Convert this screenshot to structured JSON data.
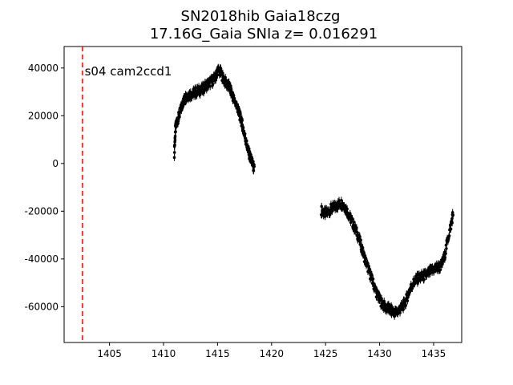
{
  "chart_data": {
    "type": "scatter",
    "title": "SN2018hib  Gaia18czg",
    "subtitle": "17.16G_Gaia SNIa z= 0.016291",
    "xlabel": "",
    "ylabel": "",
    "xlim": [
      1400.8,
      1437.6
    ],
    "ylim": [
      -75000,
      49000
    ],
    "xticks": [
      1405,
      1410,
      1415,
      1420,
      1425,
      1430,
      1435
    ],
    "yticks": [
      -60000,
      -40000,
      -20000,
      0,
      20000,
      40000
    ],
    "grid": false,
    "marker_color": "#000000",
    "errorbars": true,
    "vline": {
      "x": 1402.5,
      "color": "#ff0000",
      "style": "dashed"
    },
    "annotation": {
      "text": "s04 cam2ccd1",
      "x": 1402.7,
      "y": 38500
    },
    "series": [
      {
        "x": [
          1411.0,
          1411.1,
          1411.2,
          1411.4,
          1411.6,
          1411.8,
          1412.0,
          1412.2,
          1412.5,
          1412.8,
          1413.0,
          1413.3,
          1413.6,
          1413.9,
          1414.2,
          1414.5,
          1414.8,
          1415.0,
          1415.3,
          1415.6,
          1415.9,
          1416.1,
          1416.3,
          1416.5,
          1416.8,
          1417.0,
          1417.2,
          1417.4,
          1417.6,
          1417.8,
          1418.0,
          1418.2,
          1418.4
        ],
        "y": [
          4500,
          14000,
          17000,
          19500,
          22500,
          25500,
          27500,
          28500,
          29000,
          29500,
          30000,
          30500,
          31000,
          32500,
          33500,
          34500,
          36000,
          39000,
          38000,
          35000,
          33000,
          32000,
          29500,
          27000,
          24000,
          21000,
          18000,
          14000,
          10000,
          6000,
          3000,
          500,
          -2500
        ]
      },
      {
        "x": [
          1424.6,
          1424.9,
          1425.2,
          1425.5,
          1425.8,
          1426.1,
          1426.4,
          1426.7,
          1427.0,
          1427.3,
          1427.6,
          1427.9,
          1428.2,
          1428.5,
          1428.8,
          1429.1,
          1429.4,
          1429.7,
          1430.0,
          1430.3,
          1430.6,
          1430.9,
          1431.2,
          1431.5,
          1431.8,
          1432.1,
          1432.4,
          1432.7,
          1433.0,
          1433.3,
          1433.6,
          1433.9,
          1434.2,
          1434.5,
          1434.8,
          1435.1,
          1435.4,
          1435.7,
          1436.0,
          1436.3,
          1436.6,
          1436.8
        ],
        "y": [
          -19500,
          -21000,
          -20500,
          -19000,
          -18500,
          -17500,
          -16500,
          -17500,
          -20000,
          -23000,
          -26000,
          -29000,
          -33000,
          -38000,
          -42000,
          -46000,
          -50000,
          -54000,
          -57000,
          -59000,
          -60500,
          -61000,
          -62000,
          -62500,
          -61500,
          -60000,
          -58000,
          -54000,
          -51000,
          -49000,
          -48000,
          -47500,
          -47000,
          -46000,
          -45000,
          -44000,
          -43500,
          -43000,
          -39000,
          -32000,
          -26000,
          -21000
        ]
      }
    ]
  }
}
